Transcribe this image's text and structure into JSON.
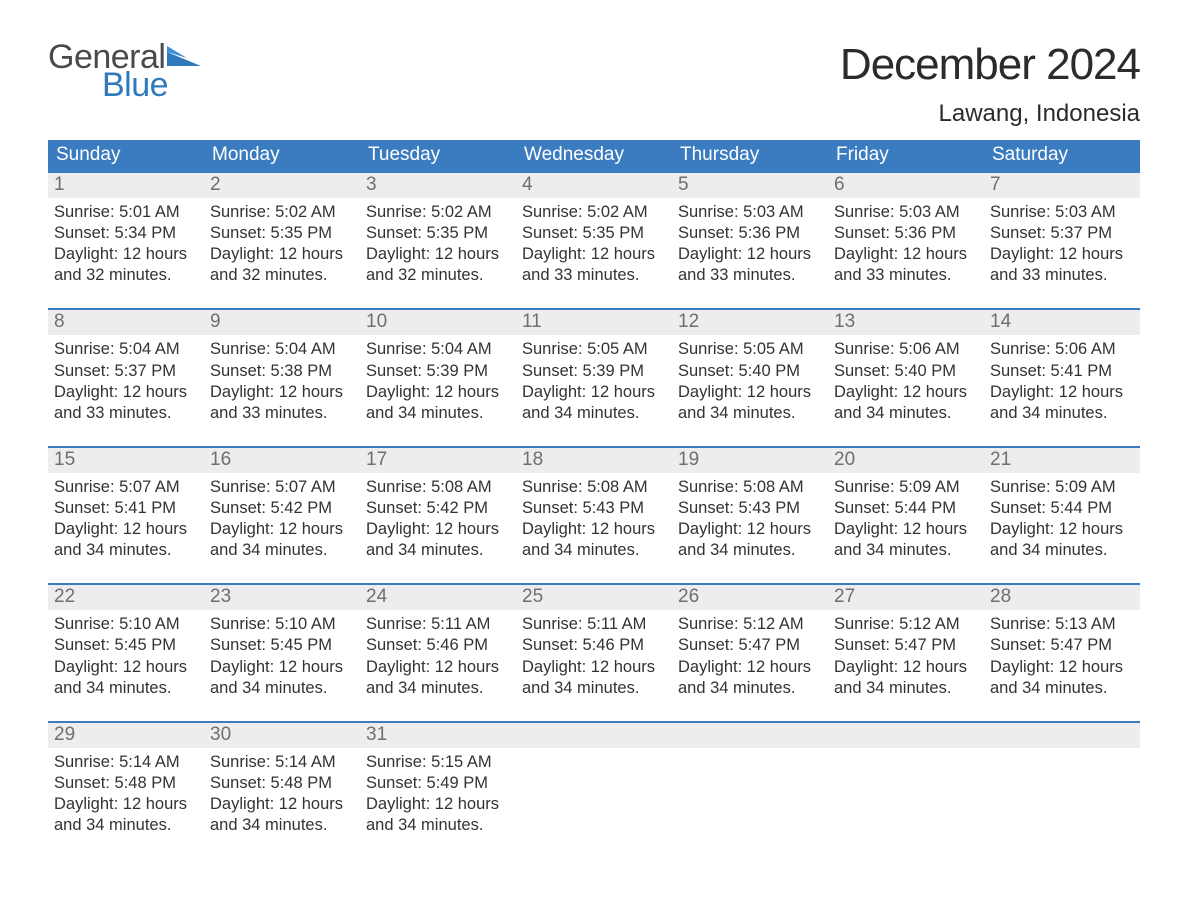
{
  "brand": {
    "part1": "General",
    "part2": "Blue",
    "shape_color": "#2f79bd"
  },
  "title": "December 2024",
  "location": "Lawang, Indonesia",
  "colors": {
    "header_bg": "#3b7bbf",
    "header_text": "#ffffff",
    "band_bg": "#ededed",
    "band_border": "#3b7bbf",
    "daynum_text": "#6f6f6f",
    "body_text": "#333333",
    "page_bg": "#ffffff"
  },
  "typography": {
    "title_fontsize": 44,
    "location_fontsize": 24,
    "dow_fontsize": 19,
    "daynum_fontsize": 19,
    "body_fontsize": 16.5
  },
  "dow": [
    "Sunday",
    "Monday",
    "Tuesday",
    "Wednesday",
    "Thursday",
    "Friday",
    "Saturday"
  ],
  "weeks": [
    [
      {
        "n": "1",
        "sunrise": "Sunrise: 5:01 AM",
        "sunset": "Sunset: 5:34 PM",
        "d1": "Daylight: 12 hours",
        "d2": "and 32 minutes."
      },
      {
        "n": "2",
        "sunrise": "Sunrise: 5:02 AM",
        "sunset": "Sunset: 5:35 PM",
        "d1": "Daylight: 12 hours",
        "d2": "and 32 minutes."
      },
      {
        "n": "3",
        "sunrise": "Sunrise: 5:02 AM",
        "sunset": "Sunset: 5:35 PM",
        "d1": "Daylight: 12 hours",
        "d2": "and 32 minutes."
      },
      {
        "n": "4",
        "sunrise": "Sunrise: 5:02 AM",
        "sunset": "Sunset: 5:35 PM",
        "d1": "Daylight: 12 hours",
        "d2": "and 33 minutes."
      },
      {
        "n": "5",
        "sunrise": "Sunrise: 5:03 AM",
        "sunset": "Sunset: 5:36 PM",
        "d1": "Daylight: 12 hours",
        "d2": "and 33 minutes."
      },
      {
        "n": "6",
        "sunrise": "Sunrise: 5:03 AM",
        "sunset": "Sunset: 5:36 PM",
        "d1": "Daylight: 12 hours",
        "d2": "and 33 minutes."
      },
      {
        "n": "7",
        "sunrise": "Sunrise: 5:03 AM",
        "sunset": "Sunset: 5:37 PM",
        "d1": "Daylight: 12 hours",
        "d2": "and 33 minutes."
      }
    ],
    [
      {
        "n": "8",
        "sunrise": "Sunrise: 5:04 AM",
        "sunset": "Sunset: 5:37 PM",
        "d1": "Daylight: 12 hours",
        "d2": "and 33 minutes."
      },
      {
        "n": "9",
        "sunrise": "Sunrise: 5:04 AM",
        "sunset": "Sunset: 5:38 PM",
        "d1": "Daylight: 12 hours",
        "d2": "and 33 minutes."
      },
      {
        "n": "10",
        "sunrise": "Sunrise: 5:04 AM",
        "sunset": "Sunset: 5:39 PM",
        "d1": "Daylight: 12 hours",
        "d2": "and 34 minutes."
      },
      {
        "n": "11",
        "sunrise": "Sunrise: 5:05 AM",
        "sunset": "Sunset: 5:39 PM",
        "d1": "Daylight: 12 hours",
        "d2": "and 34 minutes."
      },
      {
        "n": "12",
        "sunrise": "Sunrise: 5:05 AM",
        "sunset": "Sunset: 5:40 PM",
        "d1": "Daylight: 12 hours",
        "d2": "and 34 minutes."
      },
      {
        "n": "13",
        "sunrise": "Sunrise: 5:06 AM",
        "sunset": "Sunset: 5:40 PM",
        "d1": "Daylight: 12 hours",
        "d2": "and 34 minutes."
      },
      {
        "n": "14",
        "sunrise": "Sunrise: 5:06 AM",
        "sunset": "Sunset: 5:41 PM",
        "d1": "Daylight: 12 hours",
        "d2": "and 34 minutes."
      }
    ],
    [
      {
        "n": "15",
        "sunrise": "Sunrise: 5:07 AM",
        "sunset": "Sunset: 5:41 PM",
        "d1": "Daylight: 12 hours",
        "d2": "and 34 minutes."
      },
      {
        "n": "16",
        "sunrise": "Sunrise: 5:07 AM",
        "sunset": "Sunset: 5:42 PM",
        "d1": "Daylight: 12 hours",
        "d2": "and 34 minutes."
      },
      {
        "n": "17",
        "sunrise": "Sunrise: 5:08 AM",
        "sunset": "Sunset: 5:42 PM",
        "d1": "Daylight: 12 hours",
        "d2": "and 34 minutes."
      },
      {
        "n": "18",
        "sunrise": "Sunrise: 5:08 AM",
        "sunset": "Sunset: 5:43 PM",
        "d1": "Daylight: 12 hours",
        "d2": "and 34 minutes."
      },
      {
        "n": "19",
        "sunrise": "Sunrise: 5:08 AM",
        "sunset": "Sunset: 5:43 PM",
        "d1": "Daylight: 12 hours",
        "d2": "and 34 minutes."
      },
      {
        "n": "20",
        "sunrise": "Sunrise: 5:09 AM",
        "sunset": "Sunset: 5:44 PM",
        "d1": "Daylight: 12 hours",
        "d2": "and 34 minutes."
      },
      {
        "n": "21",
        "sunrise": "Sunrise: 5:09 AM",
        "sunset": "Sunset: 5:44 PM",
        "d1": "Daylight: 12 hours",
        "d2": "and 34 minutes."
      }
    ],
    [
      {
        "n": "22",
        "sunrise": "Sunrise: 5:10 AM",
        "sunset": "Sunset: 5:45 PM",
        "d1": "Daylight: 12 hours",
        "d2": "and 34 minutes."
      },
      {
        "n": "23",
        "sunrise": "Sunrise: 5:10 AM",
        "sunset": "Sunset: 5:45 PM",
        "d1": "Daylight: 12 hours",
        "d2": "and 34 minutes."
      },
      {
        "n": "24",
        "sunrise": "Sunrise: 5:11 AM",
        "sunset": "Sunset: 5:46 PM",
        "d1": "Daylight: 12 hours",
        "d2": "and 34 minutes."
      },
      {
        "n": "25",
        "sunrise": "Sunrise: 5:11 AM",
        "sunset": "Sunset: 5:46 PM",
        "d1": "Daylight: 12 hours",
        "d2": "and 34 minutes."
      },
      {
        "n": "26",
        "sunrise": "Sunrise: 5:12 AM",
        "sunset": "Sunset: 5:47 PM",
        "d1": "Daylight: 12 hours",
        "d2": "and 34 minutes."
      },
      {
        "n": "27",
        "sunrise": "Sunrise: 5:12 AM",
        "sunset": "Sunset: 5:47 PM",
        "d1": "Daylight: 12 hours",
        "d2": "and 34 minutes."
      },
      {
        "n": "28",
        "sunrise": "Sunrise: 5:13 AM",
        "sunset": "Sunset: 5:47 PM",
        "d1": "Daylight: 12 hours",
        "d2": "and 34 minutes."
      }
    ],
    [
      {
        "n": "29",
        "sunrise": "Sunrise: 5:14 AM",
        "sunset": "Sunset: 5:48 PM",
        "d1": "Daylight: 12 hours",
        "d2": "and 34 minutes."
      },
      {
        "n": "30",
        "sunrise": "Sunrise: 5:14 AM",
        "sunset": "Sunset: 5:48 PM",
        "d1": "Daylight: 12 hours",
        "d2": "and 34 minutes."
      },
      {
        "n": "31",
        "sunrise": "Sunrise: 5:15 AM",
        "sunset": "Sunset: 5:49 PM",
        "d1": "Daylight: 12 hours",
        "d2": "and 34 minutes."
      },
      {
        "n": "",
        "sunrise": "",
        "sunset": "",
        "d1": "",
        "d2": ""
      },
      {
        "n": "",
        "sunrise": "",
        "sunset": "",
        "d1": "",
        "d2": ""
      },
      {
        "n": "",
        "sunrise": "",
        "sunset": "",
        "d1": "",
        "d2": ""
      },
      {
        "n": "",
        "sunrise": "",
        "sunset": "",
        "d1": "",
        "d2": ""
      }
    ]
  ]
}
